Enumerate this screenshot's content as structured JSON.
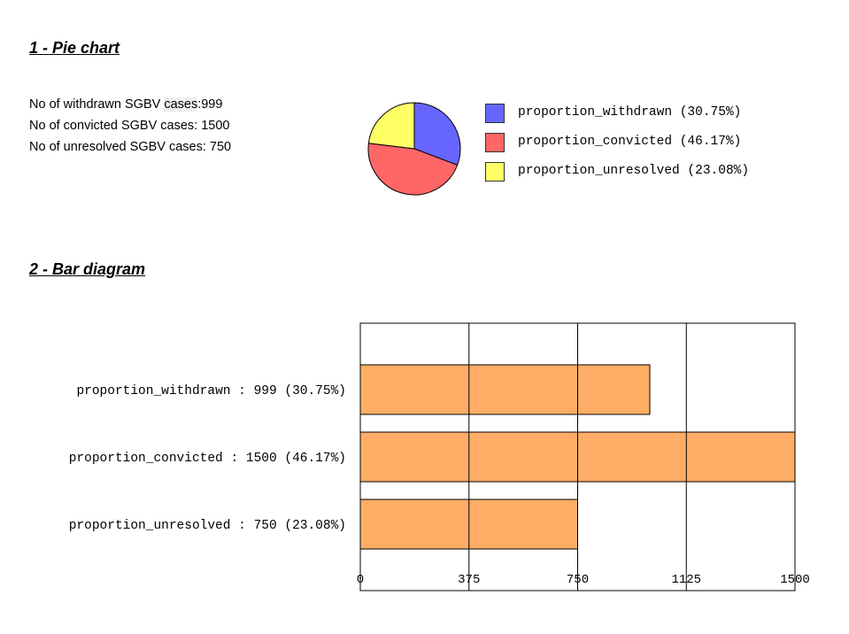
{
  "sections": {
    "pie_title": "1 - Pie chart",
    "bar_title": "2 - Bar diagram"
  },
  "stats": {
    "withdrawn_prefix": "No of withdrawn SGBV ",
    "withdrawn_hl": "cases",
    "withdrawn_suffix": ":999",
    "convicted": "No of convicted SGBV cases: 1500",
    "unresolved": "No of unresolved SGBV cases: 750"
  },
  "colors": {
    "withdrawn": "#6666ff",
    "convicted": "#ff6666",
    "unresolved": "#ffff66",
    "bar": "#ffad66"
  },
  "chart_data": [
    {
      "type": "pie",
      "title": "1 - Pie chart",
      "labels": [
        "proportion_withdrawn (30.75%)",
        "proportion_convicted (46.17%)",
        "proportion_unresolved (23.08%)"
      ],
      "values": [
        999,
        1500,
        750
      ],
      "percentages": [
        30.75,
        46.17,
        23.08
      ],
      "legend_position": "right"
    },
    {
      "type": "bar",
      "orientation": "horizontal",
      "title": "2 - Bar diagram",
      "categories": [
        "proportion_withdrawn : 999 (30.75%)",
        "proportion_convicted : 1500 (46.17%)",
        "proportion_unresolved : 750 (23.08%)"
      ],
      "values": [
        999,
        1500,
        750
      ],
      "xlim": [
        0,
        1500
      ],
      "xticks": [
        "0",
        "375",
        "750",
        "1125",
        "1500"
      ],
      "grid": true
    }
  ]
}
